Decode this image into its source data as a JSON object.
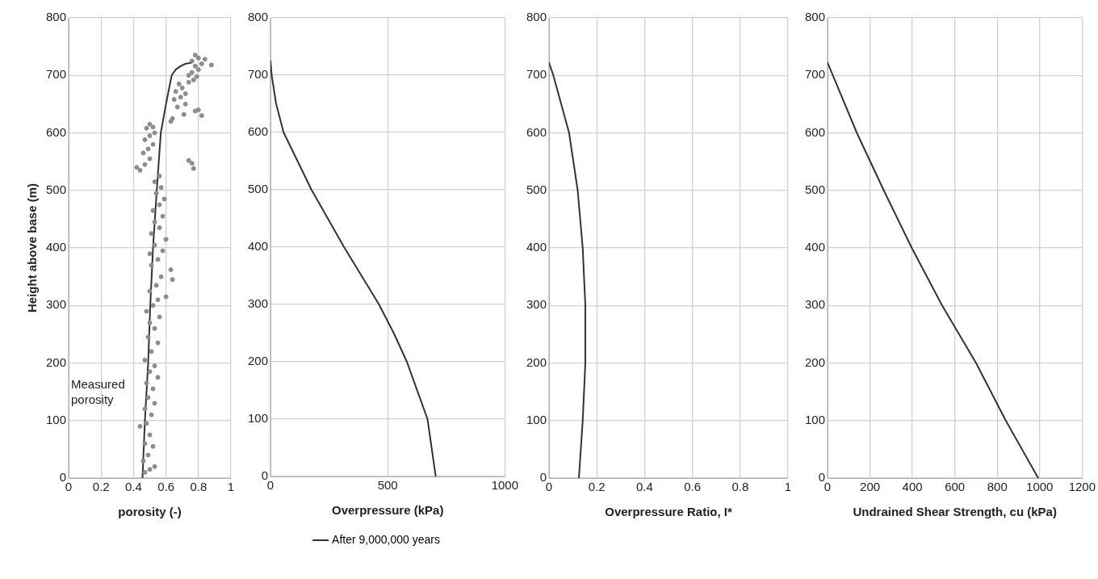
{
  "chart_data": [
    {
      "type": "line",
      "xlabel": "porosity (-)",
      "ylabel": "Height above base (m)",
      "xlim": [
        0,
        1
      ],
      "xticks": [
        0,
        0.2,
        0.4,
        0.6,
        0.8,
        1
      ],
      "ylim": [
        0,
        800
      ],
      "yticks": [
        0,
        100,
        200,
        300,
        400,
        500,
        600,
        700,
        800
      ],
      "grid": true,
      "series": [
        {
          "type": "scatter",
          "color": "#8c8c8c",
          "marker": "circle",
          "x": [
            0.47,
            0.5,
            0.53,
            0.46,
            0.49,
            0.52,
            0.47,
            0.5,
            0.44,
            0.48,
            0.51,
            0.47,
            0.53,
            0.49,
            0.52,
            0.48,
            0.55,
            0.5,
            0.53,
            0.47,
            0.51,
            0.55,
            0.49,
            0.53,
            0.5,
            0.56,
            0.48,
            0.52,
            0.55,
            0.6,
            0.5,
            0.54,
            0.64,
            0.57,
            0.63,
            0.51,
            0.55,
            0.5,
            0.58,
            0.53,
            0.6,
            0.51,
            0.56,
            0.53,
            0.58,
            0.52,
            0.56,
            0.59,
            0.54,
            0.57,
            0.53,
            0.56,
            0.42,
            0.44,
            0.47,
            0.5,
            0.46,
            0.49,
            0.52,
            0.47,
            0.5,
            0.53,
            0.48,
            0.5,
            0.52,
            0.74,
            0.76,
            0.77,
            0.63,
            0.64,
            0.71,
            0.78,
            0.8,
            0.82,
            0.67,
            0.72,
            0.65,
            0.69,
            0.72,
            0.66,
            0.7,
            0.68,
            0.74,
            0.77,
            0.79,
            0.76,
            0.8,
            0.78,
            0.82,
            0.76,
            0.8,
            0.84,
            0.88,
            0.78,
            0.74
          ],
          "values": [
            10,
            15,
            20,
            30,
            40,
            55,
            60,
            75,
            90,
            95,
            110,
            120,
            130,
            140,
            155,
            165,
            175,
            185,
            195,
            205,
            220,
            235,
            245,
            260,
            270,
            280,
            290,
            300,
            310,
            315,
            325,
            335,
            345,
            350,
            362,
            370,
            380,
            390,
            395,
            405,
            415,
            425,
            435,
            445,
            455,
            465,
            475,
            485,
            495,
            505,
            515,
            525,
            540,
            535,
            545,
            555,
            565,
            572,
            580,
            588,
            595,
            600,
            608,
            615,
            610,
            552,
            547,
            538,
            620,
            625,
            632,
            638,
            640,
            630,
            645,
            650,
            658,
            662,
            668,
            672,
            678,
            685,
            688,
            692,
            698,
            705,
            710,
            716,
            720,
            725,
            730,
            728,
            718,
            735,
            700
          ]
        },
        {
          "type": "line",
          "color": "#333333",
          "marker": "none",
          "x": [
            0.455,
            0.47,
            0.49,
            0.503,
            0.52,
            0.543,
            0.568,
            0.6,
            0.635,
            0.66,
            0.69,
            0.72,
            0.758
          ],
          "values": [
            0,
            100,
            200,
            300,
            400,
            500,
            600,
            650,
            700,
            710,
            716,
            720,
            722
          ]
        }
      ],
      "annotations": [
        "Measured porosity"
      ]
    },
    {
      "type": "line",
      "xlabel": "Overpressure (kPa)",
      "xlim": [
        0,
        1000
      ],
      "xticks": [
        0,
        500,
        1000
      ],
      "ylim": [
        0,
        800
      ],
      "yticks": [
        0,
        100,
        200,
        300,
        400,
        500,
        600,
        700,
        800
      ],
      "grid": true,
      "legend": "bottom",
      "series": [
        {
          "type": "line",
          "name": "After 9,000,000 years",
          "color": "#333333",
          "marker": "none",
          "x": [
            705,
            670,
            582,
            526,
            463,
            314,
            175,
            56,
            24,
            5,
            0
          ],
          "values": [
            0,
            100,
            200,
            250,
            300,
            400,
            500,
            600,
            650,
            700,
            725
          ]
        }
      ]
    },
    {
      "type": "line",
      "xlabel": "Overpressure Ratio, I*",
      "xlim": [
        0,
        1
      ],
      "xticks": [
        0,
        0.2,
        0.4,
        0.6,
        0.8,
        1
      ],
      "ylim": [
        0,
        800
      ],
      "yticks": [
        0,
        100,
        200,
        300,
        400,
        500,
        600,
        700,
        800
      ],
      "grid": true,
      "series": [
        {
          "type": "line",
          "color": "#333333",
          "marker": "none",
          "x": [
            0.125,
            0.141,
            0.152,
            0.152,
            0.141,
            0.12,
            0.084,
            0.018,
            0
          ],
          "values": [
            0,
            100,
            200,
            300,
            400,
            500,
            600,
            700,
            722
          ]
        }
      ]
    },
    {
      "type": "line",
      "xlabel": "Undrained Shear Strength, cu (kPa)",
      "xlim": [
        0,
        1200
      ],
      "xticks": [
        0,
        200,
        400,
        600,
        800,
        1000,
        1200
      ],
      "ylim": [
        0,
        800
      ],
      "yticks": [
        0,
        100,
        200,
        300,
        400,
        500,
        600,
        700,
        800
      ],
      "grid": true,
      "series": [
        {
          "type": "line",
          "color": "#333333",
          "marker": "none",
          "x": [
            993,
            840,
            700,
            540,
            397,
            265,
            138,
            0
          ],
          "values": [
            0,
            100,
            200,
            300,
            400,
            500,
            600,
            722
          ]
        }
      ]
    }
  ]
}
